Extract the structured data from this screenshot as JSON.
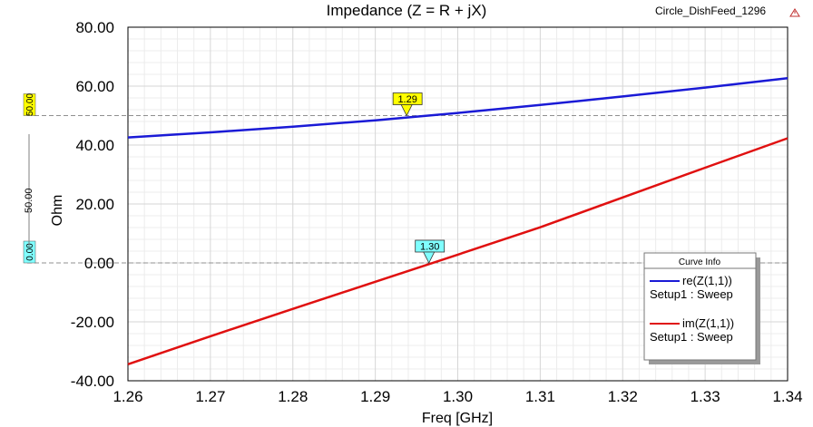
{
  "header": {
    "title": "Impedance (Z = R + jX)",
    "design_name": "Circle_DishFeed_1296"
  },
  "colors": {
    "grid": "#d6d6d6",
    "minor_grid": "#ececec",
    "series_re": "#1a1ad6",
    "series_im": "#e01010",
    "marker_yellow": "#ffff00",
    "marker_cyan": "#80ffff",
    "ref_line": "#909090"
  },
  "chart_data": {
    "type": "line",
    "title": "Impedance (Z = R + jX)",
    "xlabel": "Freq [GHz]",
    "ylabel": "Ohm",
    "xlim": [
      1.26,
      1.34
    ],
    "ylim": [
      -40,
      80
    ],
    "x_ticks": [
      "1.26",
      "1.27",
      "1.28",
      "1.29",
      "1.30",
      "1.31",
      "1.32",
      "1.33",
      "1.34"
    ],
    "x_tick_values": [
      1.26,
      1.27,
      1.28,
      1.29,
      1.3,
      1.31,
      1.32,
      1.33,
      1.34
    ],
    "y_ticks": [
      "80.00",
      "60.00",
      "40.00",
      "20.00",
      "0.00",
      "-20.00",
      "-40.00"
    ],
    "y_tick_values": [
      80,
      60,
      40,
      20,
      0,
      -20,
      -40
    ],
    "grid": true,
    "series": [
      {
        "name": "re(Z(1,1))",
        "sub": "Setup1 : Sweep",
        "color": "#1a1ad6",
        "x": [
          1.26,
          1.27,
          1.28,
          1.29,
          1.3,
          1.31,
          1.32,
          1.33,
          1.34
        ],
        "values": [
          42.6,
          44.3,
          46.2,
          48.4,
          50.9,
          53.6,
          56.5,
          59.5,
          62.7
        ]
      },
      {
        "name": "im(Z(1,1))",
        "sub": "Setup1 : Sweep",
        "color": "#e01010",
        "x": [
          1.26,
          1.27,
          1.28,
          1.29,
          1.3,
          1.31,
          1.32,
          1.33,
          1.34
        ],
        "values": [
          -34.4,
          -24.9,
          -15.6,
          -6.4,
          2.8,
          12.1,
          22.2,
          32.3,
          42.3
        ]
      }
    ],
    "markers": [
      {
        "label": "1.29",
        "x": 1.2938,
        "y": 50.0,
        "series": 0
      },
      {
        "label": "1.30",
        "x": 1.2965,
        "y": 0.0,
        "series": 1
      }
    ],
    "reference_lines": [
      {
        "y": 50.0,
        "label": "50.00"
      },
      {
        "y": 0.0,
        "label": "0.00"
      }
    ],
    "delta_label": "50.00",
    "legend": {
      "title": "Curve Info",
      "placement": "bottom-right"
    }
  }
}
